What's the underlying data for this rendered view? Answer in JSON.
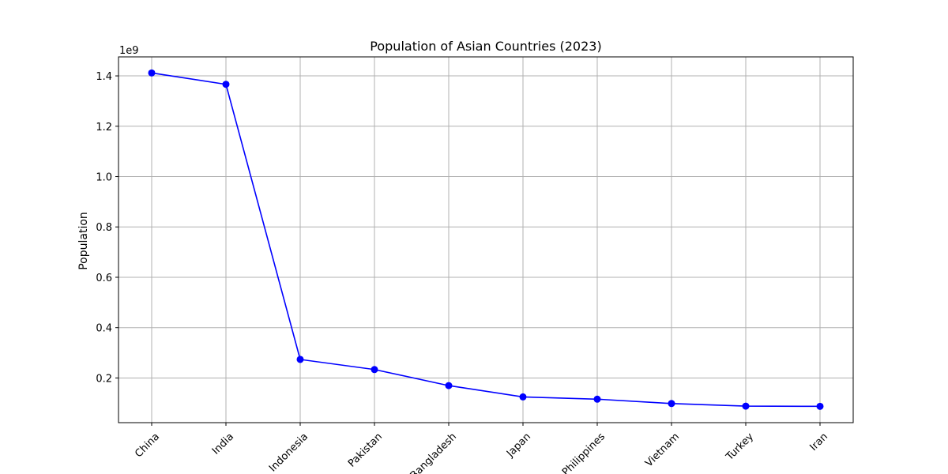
{
  "chart_data": {
    "type": "line",
    "title": "Population of Asian Countries (2023)",
    "xlabel": "",
    "ylabel": "Population",
    "y_offset_text": "1e9",
    "y_tick_values": [
      0.2,
      0.4,
      0.6,
      0.8,
      1.0,
      1.2,
      1.4
    ],
    "y_tick_labels": [
      "0.2",
      "0.4",
      "0.6",
      "0.8",
      "1.0",
      "1.2",
      "1.4"
    ],
    "ylim": [
      0.0225,
      1.4755
    ],
    "categories": [
      "China",
      "India",
      "Indonesia",
      "Pakistan",
      "Bangladesh",
      "Japan",
      "Philippines",
      "Vietnam",
      "Turkey",
      "Iran"
    ],
    "series": [
      {
        "values": [
          1.4117,
          1.3665,
          0.2736,
          0.2335,
          0.1697,
          0.1248,
          0.1158,
          0.0985,
          0.0881,
          0.0873
        ],
        "color": "#0000ff",
        "marker": "circle"
      }
    ],
    "grid": true,
    "colors": {
      "line": "#0000ff",
      "grid": "#b0b0b0",
      "axis": "#000000",
      "background": "#ffffff"
    }
  }
}
